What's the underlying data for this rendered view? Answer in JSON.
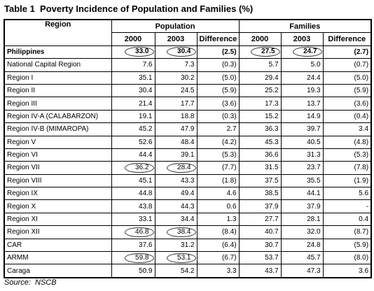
{
  "title": "Table 1  Poverty Incidence of Population and Families (%)",
  "table": {
    "region_header": "Region",
    "groups": [
      "Population",
      "Families"
    ],
    "subheaders": [
      "2000",
      "2003",
      "Difference",
      "2000",
      "2003",
      "Difference"
    ],
    "rows": [
      [
        "Philippines",
        "33.0",
        "30.4",
        "(2.5)",
        "27.5",
        "24.7",
        "(2.7)"
      ],
      [
        "National Capital Region",
        "7.6",
        "7.3",
        "(0.3)",
        "5.7",
        "5.0",
        "(0.7)"
      ],
      [
        "Region I",
        "35.1",
        "30.2",
        "(5.0)",
        "29.4",
        "24.4",
        "(5.0)"
      ],
      [
        "Region II",
        "30.4",
        "24.5",
        "(5.9)",
        "25.2",
        "19.3",
        "(5.9)"
      ],
      [
        "Region III",
        "21.4",
        "17.7",
        "(3.6)",
        "17.3",
        "13.7",
        "(3.6)"
      ],
      [
        "Region IV-A (CALABARZON)",
        "19.1",
        "18.8",
        "(0.3)",
        "15.2",
        "14.9",
        "(0.4)"
      ],
      [
        "Region IV-B (MIMAROPA)",
        "45.2",
        "47.9",
        "2.7",
        "36.3",
        "39.7",
        "3.4"
      ],
      [
        "Region V",
        "52.6",
        "48.4",
        "(4.2)",
        "45.3",
        "40.5",
        "(4.8)"
      ],
      [
        "Region VI",
        "44.4",
        "39.1",
        "(5.3)",
        "36.6",
        "31.3",
        "(5.3)"
      ],
      [
        "Region VII",
        "36.2",
        "28.4",
        "(7.7)",
        "31.5",
        "23.7",
        "(7.8)"
      ],
      [
        "Region VIII",
        "45.1",
        "43.3",
        "(1.8)",
        "37.5",
        "35.5",
        "(1.9)"
      ],
      [
        "Region IX",
        "44.8",
        "49.4",
        "4.6",
        "38.5",
        "44.1",
        "5.6"
      ],
      [
        "Region X",
        "43.8",
        "44.3",
        "0.6",
        "37.9",
        "37.9",
        "-"
      ],
      [
        "Region XI",
        "33.1",
        "34.4",
        "1.3",
        "27.7",
        "28.1",
        "0.4"
      ],
      [
        "Region XII",
        "46.8",
        "38.4",
        "(8.4)",
        "40.7",
        "32.0",
        "(8.7)"
      ],
      [
        "CAR",
        "37.6",
        "31.2",
        "(6.4)",
        "30.7",
        "24.8",
        "(5.9)"
      ],
      [
        "ARMM",
        "59.8",
        "53.1",
        "(6.7)",
        "53.7",
        "45.7",
        "(8.0)"
      ],
      [
        "Caraga",
        "50.9",
        "54.2",
        "3.3",
        "43.7",
        "47.3",
        "3.6"
      ]
    ]
  },
  "source": "Source:  NSCB"
}
